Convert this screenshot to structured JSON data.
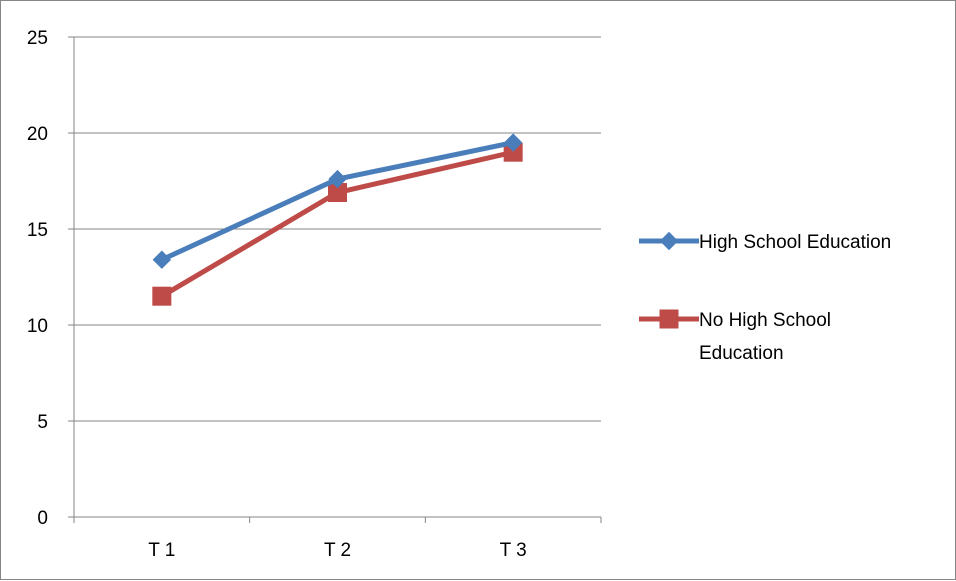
{
  "chart_data": {
    "type": "line",
    "title": "",
    "xlabel": "",
    "ylabel": "",
    "categories": [
      "T 1",
      "T 2",
      "T 3"
    ],
    "ylim": [
      0,
      25
    ],
    "yticks": [
      "0",
      "5",
      "10",
      "15",
      "20",
      "25"
    ],
    "grid": true,
    "legend_position": "right",
    "series": [
      {
        "name": "High School Education",
        "values": [
          13.4,
          17.6,
          19.5
        ],
        "color": "#4a7ebb",
        "marker": "diamond",
        "legend_lines": [
          "High School Education"
        ]
      },
      {
        "name": "No High School Education",
        "values": [
          11.5,
          16.9,
          19.0
        ],
        "color": "#be4b48",
        "marker": "square",
        "legend_lines": [
          "No High School",
          "Education"
        ]
      }
    ]
  }
}
